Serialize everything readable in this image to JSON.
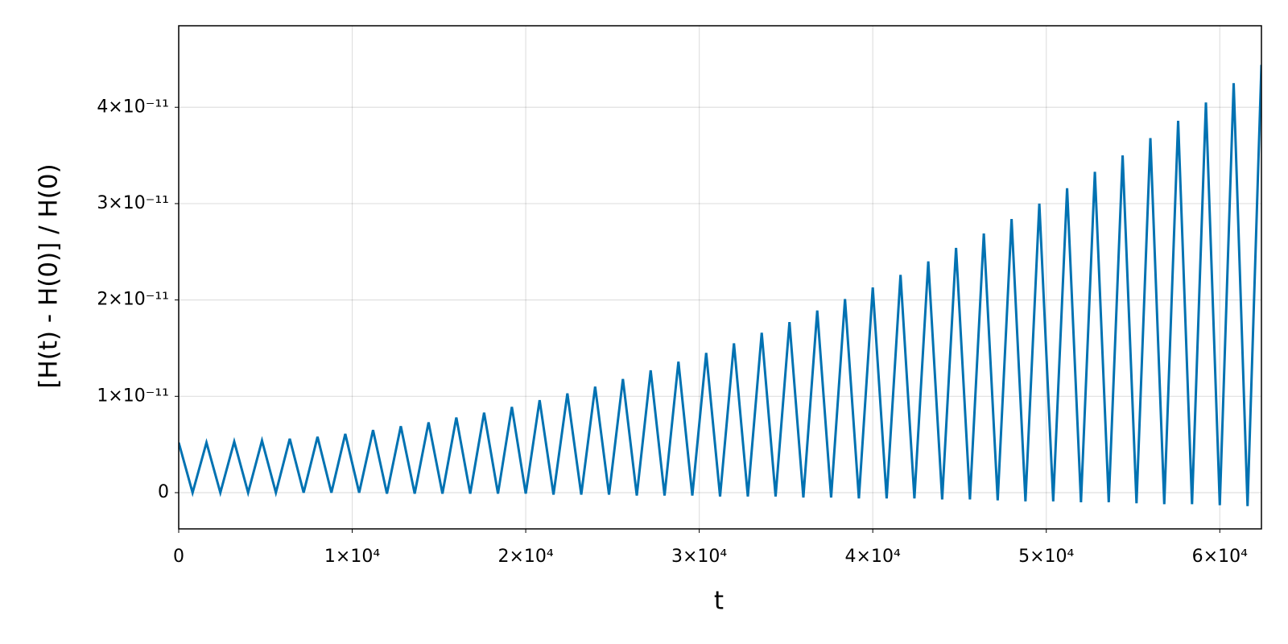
{
  "chart_data": {
    "type": "line",
    "xlabel": "t",
    "ylabel": "[H(t) - H(0)] / H(0)",
    "color": "#0072b2",
    "grid": true,
    "xlim": [
      0,
      62400
    ],
    "ylim": [
      -3.76e-12,
      4.846e-11
    ],
    "xticks": [
      0,
      {
        "value": 10000,
        "label": "1×10⁴"
      },
      {
        "value": 20000,
        "label": "2×10⁴"
      },
      {
        "value": 30000,
        "label": "3×10⁴"
      },
      {
        "value": 40000,
        "label": "4×10⁴"
      },
      {
        "value": 50000,
        "label": "5×10⁴"
      },
      {
        "value": 60000,
        "label": "6×10⁴"
      }
    ],
    "yticks": [
      0,
      {
        "value": 1e-11,
        "label": "1×10⁻¹¹"
      },
      {
        "value": 2e-11,
        "label": "2×10⁻¹¹"
      },
      {
        "value": 3e-11,
        "label": "3×10⁻¹¹"
      },
      {
        "value": 4e-11,
        "label": "4×10⁻¹¹"
      }
    ],
    "x": [
      0,
      800,
      1600,
      2400,
      3200,
      4000,
      4800,
      5600,
      6400,
      7200,
      8000,
      8800,
      9600,
      10400,
      11200,
      12000,
      12800,
      13600,
      14400,
      15200,
      16000,
      16800,
      17600,
      18400,
      19200,
      20000,
      20800,
      21600,
      22400,
      23200,
      24000,
      24800,
      25600,
      26400,
      27200,
      28000,
      28800,
      29600,
      30400,
      31200,
      32000,
      32800,
      33600,
      34400,
      35200,
      36000,
      36800,
      37600,
      38400,
      39200,
      40000,
      40800,
      41600,
      42400,
      43200,
      44000,
      44800,
      45600,
      46400,
      47200,
      48000,
      48800,
      49600,
      50400,
      51200,
      52000,
      52800,
      53600,
      54400,
      55200,
      56000,
      56800,
      57600,
      58400,
      59200,
      60000,
      60800,
      61600,
      62400
    ],
    "values": [
      5.2e-12,
      0,
      5.2e-12,
      0,
      5.3e-12,
      0,
      5.4e-12,
      0,
      5.6e-12,
      0,
      5.8e-12,
      0,
      6.1e-12,
      0,
      6.5e-12,
      -1e-13,
      6.9e-12,
      -1e-13,
      7.3e-12,
      -1e-13,
      7.8e-12,
      -1e-13,
      8.3e-12,
      -1e-13,
      8.9e-12,
      -1e-13,
      9.6e-12,
      -2e-13,
      1.03e-11,
      -2e-13,
      1.1e-11,
      -2e-13,
      1.18e-11,
      -3e-13,
      1.27e-11,
      -3e-13,
      1.36e-11,
      -3e-13,
      1.45e-11,
      -4e-13,
      1.55e-11,
      -4e-13,
      1.66e-11,
      -4e-13,
      1.77e-11,
      -5e-13,
      1.89e-11,
      -5e-13,
      2.01e-11,
      -6e-13,
      2.13e-11,
      -6e-13,
      2.26e-11,
      -6e-13,
      2.4e-11,
      -7e-13,
      2.54e-11,
      -7e-13,
      2.69e-11,
      -8e-13,
      2.84e-11,
      -9e-13,
      3e-11,
      -9e-13,
      3.16e-11,
      -1e-12,
      3.33e-11,
      -1e-12,
      3.5e-11,
      -1.1e-12,
      3.68e-11,
      -1.2e-12,
      3.86e-11,
      -1.2e-12,
      4.05e-11,
      -1.3e-12,
      4.25e-11,
      -1.4e-12,
      4.44e-11
    ]
  }
}
